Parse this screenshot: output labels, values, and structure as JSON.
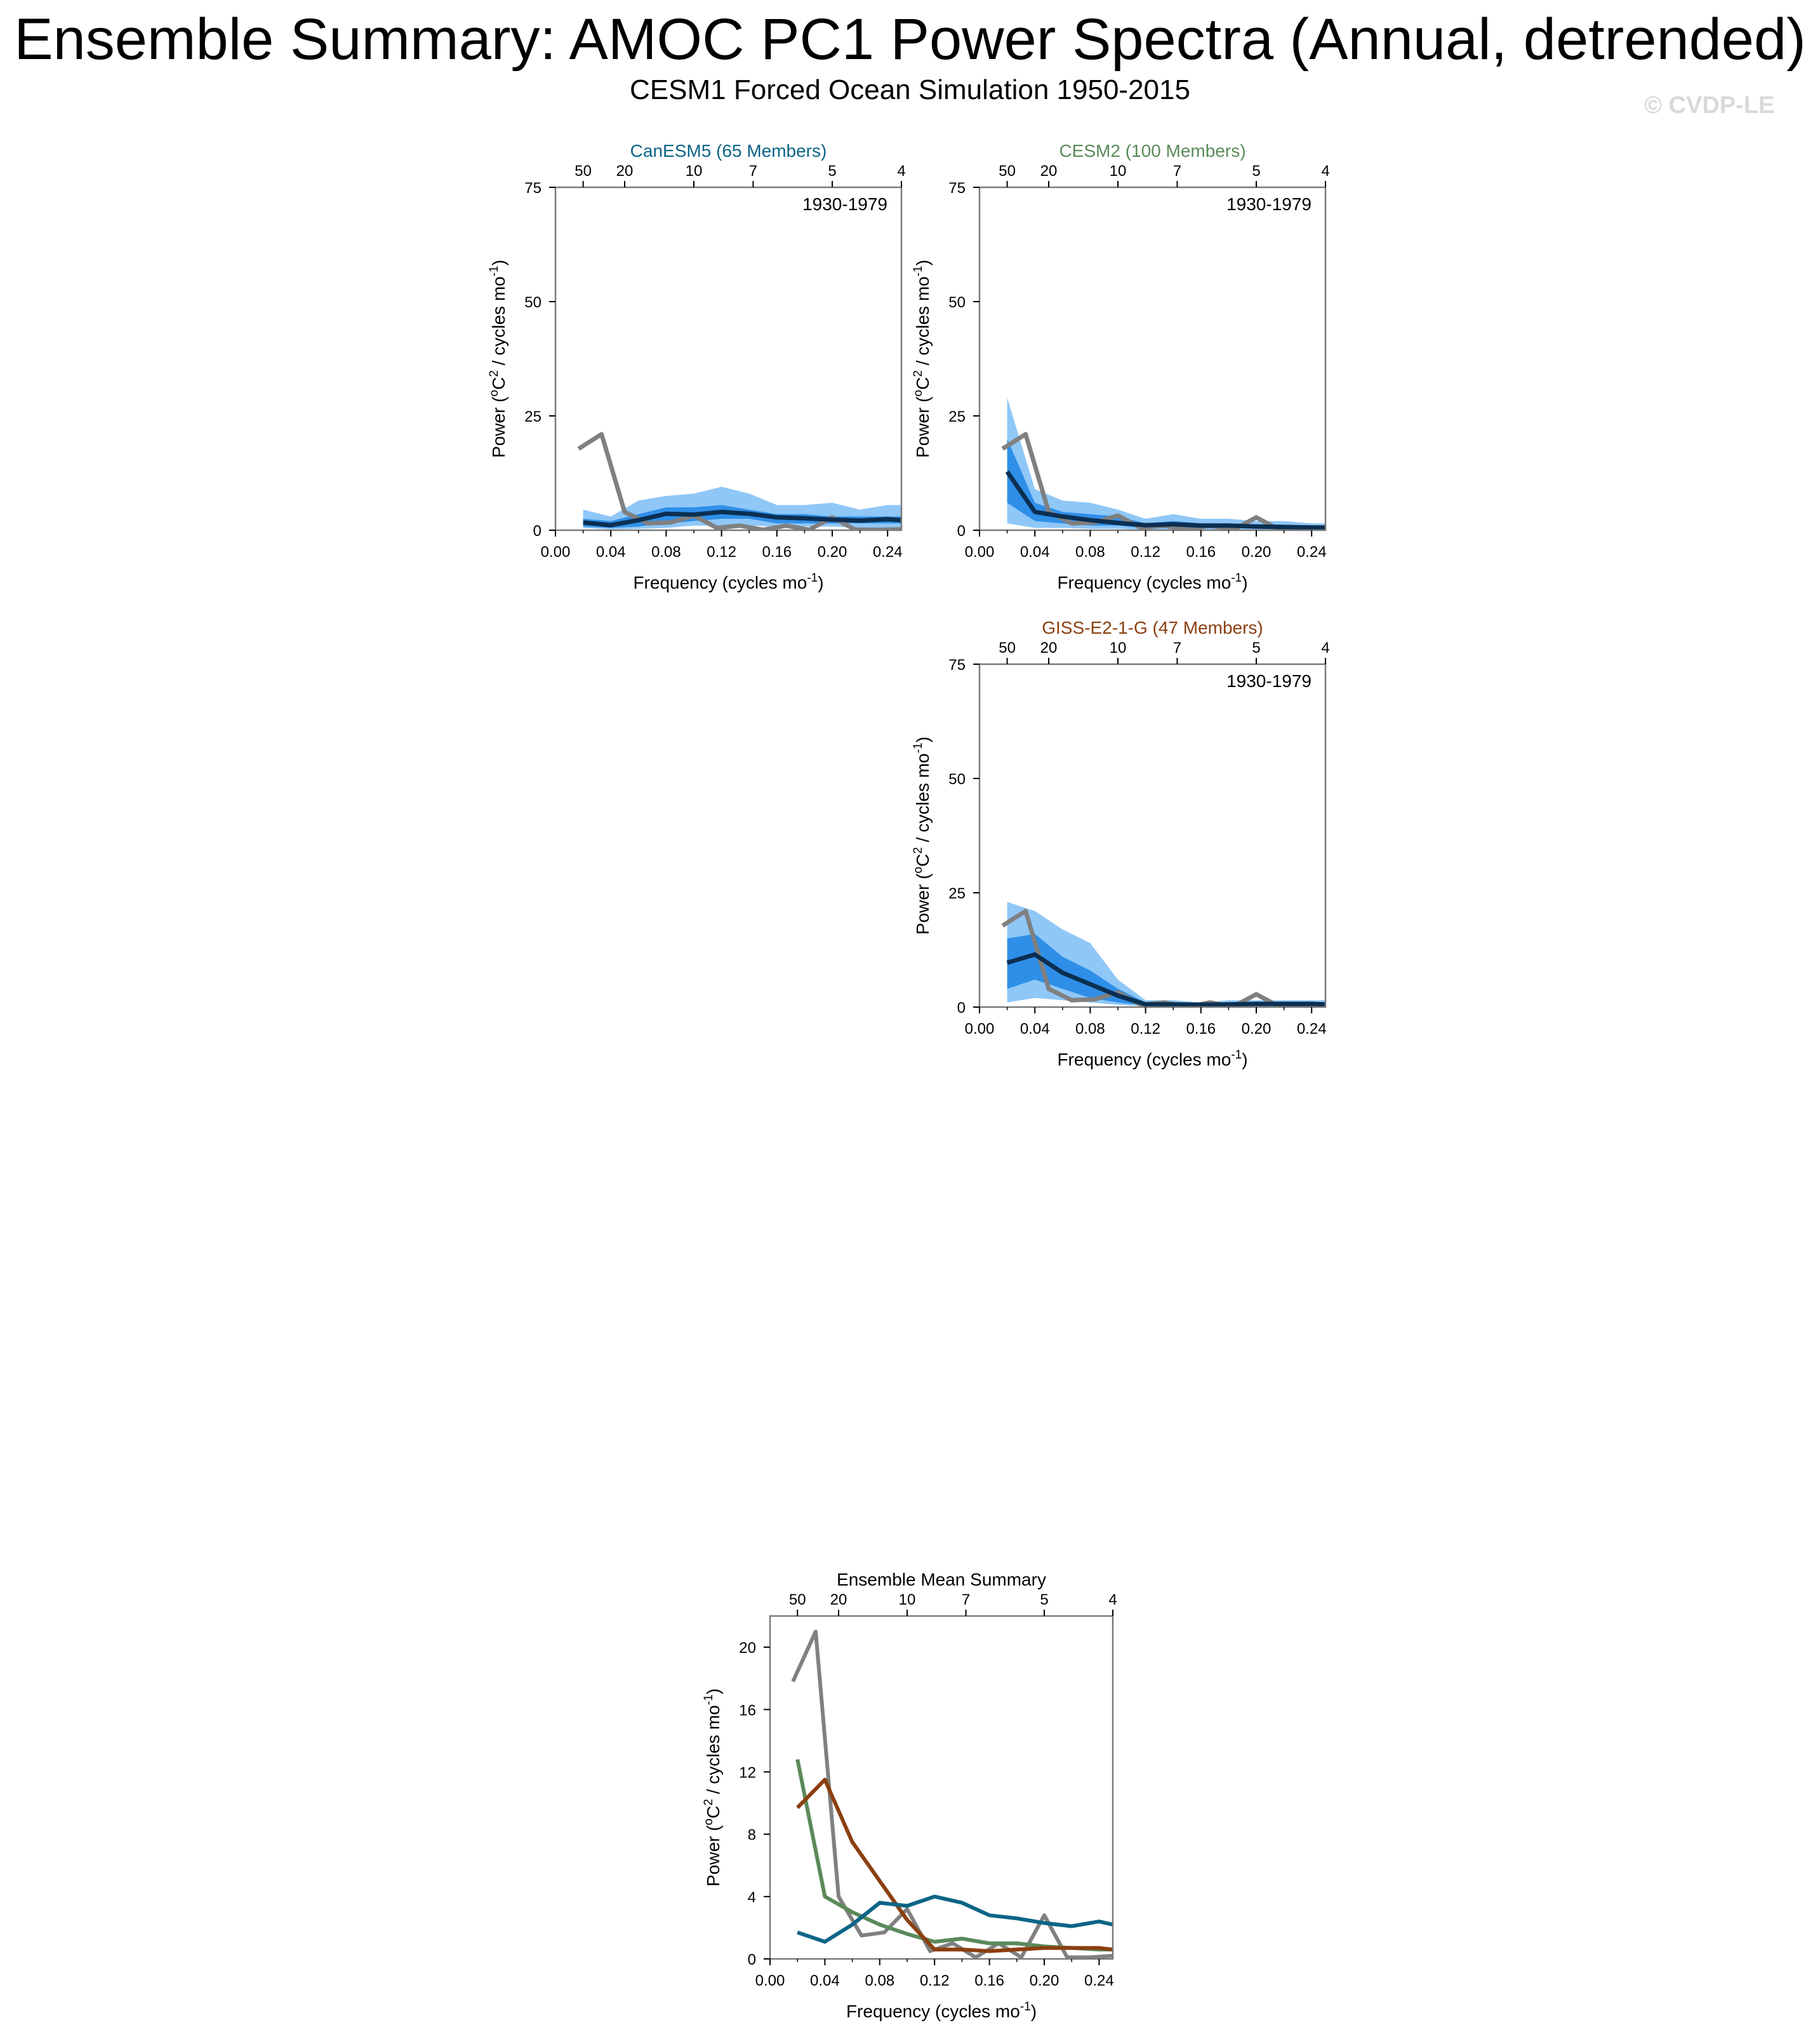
{
  "title": "Ensemble Summary: AMOC PC1 Power Spectra (Annual, detrended)",
  "subtitle": "CESM1 Forced Ocean Simulation 1950-2015",
  "watermark": "© CVDP-LE",
  "colors": {
    "band_outer": "#8fc7f7",
    "band_inner": "#2f8fe8",
    "ensemble_mean": "#0b2f52",
    "observed": "#808080",
    "canesm5": "#0c6587",
    "cesm2": "#5a8a5a",
    "giss": "#8b3f0f",
    "axis": "#000000"
  },
  "chart_data": [
    {
      "id": "canesm5",
      "type": "area",
      "title": "CanESM5 (65 Members)",
      "title_color": "#0c6587",
      "period_label": "1930-1979",
      "xlabel": "Frequency (cycles mo",
      "xlabel_sup": "-1",
      "xlabel_end": ")",
      "ylabel": "Power (",
      "ylabel_sup1": "o",
      "ylabel_mid": "C",
      "ylabel_sup2": "2",
      "ylabel_mid2": " / cycles mo",
      "ylabel_sup3": "-1",
      "ylabel_end": ")",
      "xlim": [
        0,
        0.25
      ],
      "ylim": [
        0,
        75
      ],
      "xticks": [
        "0.00",
        "0.04",
        "0.08",
        "0.12",
        "0.16",
        "0.20",
        "0.24"
      ],
      "xtick_values": [
        0,
        0.04,
        0.08,
        0.12,
        0.16,
        0.2,
        0.24
      ],
      "yticks": [
        "0",
        "25",
        "50",
        "75"
      ],
      "ytick_values": [
        0,
        25,
        50,
        75
      ],
      "top_ticks": [
        "50",
        "20",
        "10",
        "7",
        "5",
        "4"
      ],
      "top_tick_periods": [
        50,
        20,
        10,
        7,
        5,
        4
      ],
      "x": [
        0.02,
        0.04,
        0.06,
        0.08,
        0.1,
        0.12,
        0.14,
        0.16,
        0.18,
        0.2,
        0.22,
        0.24,
        0.25
      ],
      "outer_upper": [
        4.5,
        3,
        6.5,
        7.5,
        8,
        9.5,
        8,
        5.5,
        5.5,
        6,
        4.5,
        5.5,
        5.5
      ],
      "outer_lower": [
        0.5,
        0.2,
        0.3,
        0.5,
        1,
        1,
        1,
        0.8,
        0.8,
        0.8,
        0.5,
        0.5,
        0.5
      ],
      "inner_upper": [
        2.5,
        2,
        3.5,
        5,
        5,
        5.5,
        4.5,
        3.5,
        3.5,
        3,
        3,
        3,
        3
      ],
      "inner_lower": [
        0.8,
        0.5,
        0.8,
        1.5,
        2,
        2.5,
        2.5,
        1.5,
        1.5,
        1.5,
        1.5,
        1.5,
        1.5
      ],
      "mean": [
        1.7,
        1.1,
        2.2,
        3.6,
        3.4,
        4.0,
        3.6,
        2.8,
        2.6,
        2.3,
        2.1,
        2.4,
        2.2
      ],
      "obs_x": [
        0.0167,
        0.0333,
        0.05,
        0.0667,
        0.0833,
        0.1,
        0.1167,
        0.1333,
        0.15,
        0.1667,
        0.1833,
        0.2,
        0.2167,
        0.2333,
        0.25
      ],
      "obs": [
        17.8,
        21,
        4,
        1.5,
        1.7,
        3.2,
        0.5,
        1,
        0.1,
        1,
        0.1,
        2.8,
        0.1,
        0.1,
        0.2
      ]
    },
    {
      "id": "cesm2",
      "type": "area",
      "title": "CESM2 (100 Members)",
      "title_color": "#5a8a5a",
      "period_label": "1930-1979",
      "xlabel": "Frequency (cycles mo",
      "xlabel_sup": "-1",
      "xlabel_end": ")",
      "ylabel": "Power (",
      "ylabel_sup1": "o",
      "ylabel_mid": "C",
      "ylabel_sup2": "2",
      "ylabel_mid2": " / cycles mo",
      "ylabel_sup3": "-1",
      "ylabel_end": ")",
      "xlim": [
        0,
        0.25
      ],
      "ylim": [
        0,
        75
      ],
      "xticks": [
        "0.00",
        "0.04",
        "0.08",
        "0.12",
        "0.16",
        "0.20",
        "0.24"
      ],
      "xtick_values": [
        0,
        0.04,
        0.08,
        0.12,
        0.16,
        0.2,
        0.24
      ],
      "yticks": [
        "0",
        "25",
        "50",
        "75"
      ],
      "ytick_values": [
        0,
        25,
        50,
        75
      ],
      "top_ticks": [
        "50",
        "20",
        "10",
        "7",
        "5",
        "4"
      ],
      "top_tick_periods": [
        50,
        20,
        10,
        7,
        5,
        4
      ],
      "x": [
        0.02,
        0.04,
        0.06,
        0.08,
        0.1,
        0.12,
        0.14,
        0.16,
        0.18,
        0.2,
        0.22,
        0.24,
        0.25
      ],
      "outer_upper": [
        29,
        9,
        6.5,
        6,
        4.5,
        2.5,
        3.5,
        2.5,
        2.5,
        2,
        2,
        1.5,
        1.5
      ],
      "outer_lower": [
        1.5,
        0.5,
        0.5,
        0.3,
        0.3,
        0.1,
        0.1,
        0.1,
        0.1,
        0.1,
        0.1,
        0.1,
        0.1
      ],
      "inner_upper": [
        20,
        6,
        4,
        3.5,
        3,
        1.5,
        2,
        1.5,
        1.5,
        1.3,
        1.2,
        1,
        1
      ],
      "inner_lower": [
        6,
        2,
        1.5,
        1,
        1,
        0.4,
        0.5,
        0.4,
        0.4,
        0.4,
        0.3,
        0.3,
        0.3
      ],
      "mean": [
        12.8,
        4.0,
        3.0,
        2.2,
        1.6,
        1.1,
        1.3,
        1.0,
        1.0,
        0.8,
        0.7,
        0.6,
        0.6
      ],
      "obs_x": [
        0.0167,
        0.0333,
        0.05,
        0.0667,
        0.0833,
        0.1,
        0.1167,
        0.1333,
        0.15,
        0.1667,
        0.1833,
        0.2,
        0.2167,
        0.2333,
        0.25
      ],
      "obs": [
        17.8,
        21,
        4,
        1.5,
        1.7,
        3.2,
        0.5,
        1,
        0.1,
        1,
        0.1,
        2.8,
        0.1,
        0.1,
        0.2
      ]
    },
    {
      "id": "giss",
      "type": "area",
      "title": "GISS-E2-1-G (47 Members)",
      "title_color": "#8b3f0f",
      "period_label": "1930-1979",
      "xlabel": "Frequency (cycles mo",
      "xlabel_sup": "-1",
      "xlabel_end": ")",
      "ylabel": "Power (",
      "ylabel_sup1": "o",
      "ylabel_mid": "C",
      "ylabel_sup2": "2",
      "ylabel_mid2": " / cycles mo",
      "ylabel_sup3": "-1",
      "ylabel_end": ")",
      "xlim": [
        0,
        0.25
      ],
      "ylim": [
        0,
        75
      ],
      "xticks": [
        "0.00",
        "0.04",
        "0.08",
        "0.12",
        "0.16",
        "0.20",
        "0.24"
      ],
      "xtick_values": [
        0,
        0.04,
        0.08,
        0.12,
        0.16,
        0.2,
        0.24
      ],
      "yticks": [
        "0",
        "25",
        "50",
        "75"
      ],
      "ytick_values": [
        0,
        25,
        50,
        75
      ],
      "top_ticks": [
        "50",
        "20",
        "10",
        "7",
        "5",
        "4"
      ],
      "top_tick_periods": [
        50,
        20,
        10,
        7,
        5,
        4
      ],
      "x": [
        0.02,
        0.04,
        0.06,
        0.08,
        0.1,
        0.12,
        0.14,
        0.16,
        0.18,
        0.2,
        0.22,
        0.24,
        0.25
      ],
      "outer_upper": [
        23,
        21,
        17,
        14,
        6,
        1.5,
        1.5,
        1,
        1.5,
        1.5,
        1.5,
        1.5,
        1.5
      ],
      "outer_lower": [
        1,
        2,
        1.5,
        1,
        0.5,
        0.2,
        0.1,
        0.1,
        0.1,
        0.1,
        0.1,
        0.1,
        0.1
      ],
      "inner_upper": [
        15,
        16,
        11,
        8,
        4,
        1,
        1,
        0.7,
        1,
        1,
        1,
        1,
        1
      ],
      "inner_lower": [
        4,
        6,
        4,
        2,
        1,
        0.3,
        0.3,
        0.3,
        0.3,
        0.3,
        0.3,
        0.3,
        0.3
      ],
      "mean": [
        9.7,
        11.5,
        7.5,
        5.0,
        2.5,
        0.6,
        0.6,
        0.5,
        0.6,
        0.7,
        0.7,
        0.7,
        0.6
      ],
      "obs_x": [
        0.0167,
        0.0333,
        0.05,
        0.0667,
        0.0833,
        0.1,
        0.1167,
        0.1333,
        0.15,
        0.1667,
        0.1833,
        0.2,
        0.2167,
        0.2333,
        0.25
      ],
      "obs": [
        17.8,
        21,
        4,
        1.5,
        1.7,
        3.2,
        0.5,
        1,
        0.1,
        1,
        0.1,
        2.8,
        0.1,
        0.1,
        0.2
      ]
    },
    {
      "id": "summary",
      "type": "line",
      "title": "Ensemble Mean Summary",
      "title_color": "#000000",
      "period_label": "",
      "xlabel": "Frequency (cycles mo",
      "xlabel_sup": "-1",
      "xlabel_end": ")",
      "ylabel": "Power (",
      "ylabel_sup1": "o",
      "ylabel_mid": "C",
      "ylabel_sup2": "2",
      "ylabel_mid2": " / cycles mo",
      "ylabel_sup3": "-1",
      "ylabel_end": ")",
      "xlim": [
        0,
        0.25
      ],
      "ylim": [
        0,
        22
      ],
      "xticks": [
        "0.00",
        "0.04",
        "0.08",
        "0.12",
        "0.16",
        "0.20",
        "0.24"
      ],
      "xtick_values": [
        0,
        0.04,
        0.08,
        0.12,
        0.16,
        0.2,
        0.24
      ],
      "yticks": [
        "0",
        "4",
        "8",
        "12",
        "16",
        "20"
      ],
      "ytick_values": [
        0,
        4,
        8,
        12,
        16,
        20
      ],
      "top_ticks": [
        "50",
        "20",
        "10",
        "7",
        "5",
        "4"
      ],
      "top_tick_periods": [
        50,
        20,
        10,
        7,
        5,
        4
      ],
      "series": [
        {
          "color": "#808080",
          "x": [
            0.0167,
            0.0333,
            0.05,
            0.0667,
            0.0833,
            0.1,
            0.1167,
            0.1333,
            0.15,
            0.1667,
            0.1833,
            0.2,
            0.2167,
            0.2333,
            0.25
          ],
          "values": [
            17.8,
            21,
            4,
            1.5,
            1.7,
            3.2,
            0.5,
            1,
            0.1,
            1,
            0.1,
            2.8,
            0.1,
            0.1,
            0.2
          ]
        },
        {
          "color": "#5a8a5a",
          "x": [
            0.02,
            0.04,
            0.06,
            0.08,
            0.1,
            0.12,
            0.14,
            0.16,
            0.18,
            0.2,
            0.22,
            0.24,
            0.25
          ],
          "values": [
            12.8,
            4.0,
            3.0,
            2.2,
            1.6,
            1.1,
            1.3,
            1.0,
            1.0,
            0.8,
            0.7,
            0.6,
            0.6
          ]
        },
        {
          "color": "#8b3f0f",
          "x": [
            0.02,
            0.04,
            0.06,
            0.08,
            0.1,
            0.12,
            0.14,
            0.16,
            0.18,
            0.2,
            0.22,
            0.24,
            0.25
          ],
          "values": [
            9.7,
            11.5,
            7.5,
            5.0,
            2.5,
            0.6,
            0.6,
            0.5,
            0.6,
            0.7,
            0.7,
            0.7,
            0.6
          ]
        },
        {
          "color": "#0c6587",
          "x": [
            0.02,
            0.04,
            0.06,
            0.08,
            0.1,
            0.12,
            0.14,
            0.16,
            0.18,
            0.2,
            0.22,
            0.24,
            0.25
          ],
          "values": [
            1.7,
            1.1,
            2.2,
            3.6,
            3.4,
            4.0,
            3.6,
            2.8,
            2.6,
            2.3,
            2.1,
            2.4,
            2.2
          ]
        }
      ]
    }
  ]
}
